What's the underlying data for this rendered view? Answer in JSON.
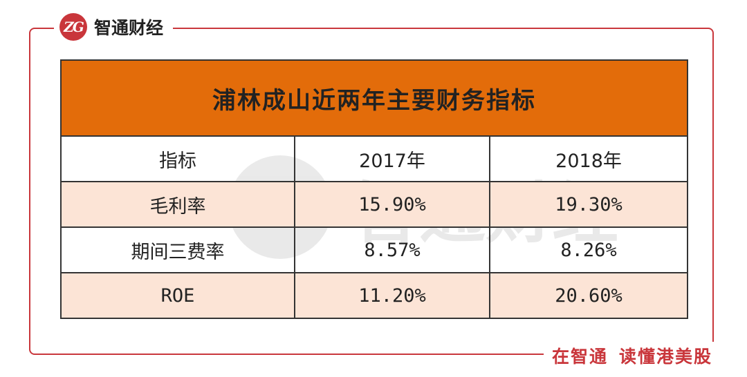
{
  "brand": {
    "logo_text": "ZG",
    "name": "智通财经"
  },
  "slogan": {
    "part1": "在智通",
    "part2": "读懂港美股"
  },
  "watermark": {
    "logo_text": "ZG",
    "text": "智通财经"
  },
  "table": {
    "title": "浦林成山近两年主要财务指标",
    "headers": [
      "指标",
      "2017年",
      "2018年"
    ],
    "rows": [
      {
        "label": "毛利率",
        "y2017": "15.90%",
        "y2018": "19.30%"
      },
      {
        "label": "期间三费率",
        "y2017": "8.57%",
        "y2018": "8.26%"
      },
      {
        "label": "ROE",
        "y2017": "11.20%",
        "y2018": "20.60%"
      }
    ]
  },
  "colors": {
    "accent": "#c9363b",
    "title_bg": "#e36c0a",
    "alt_row_bg": "#fce4d6"
  }
}
